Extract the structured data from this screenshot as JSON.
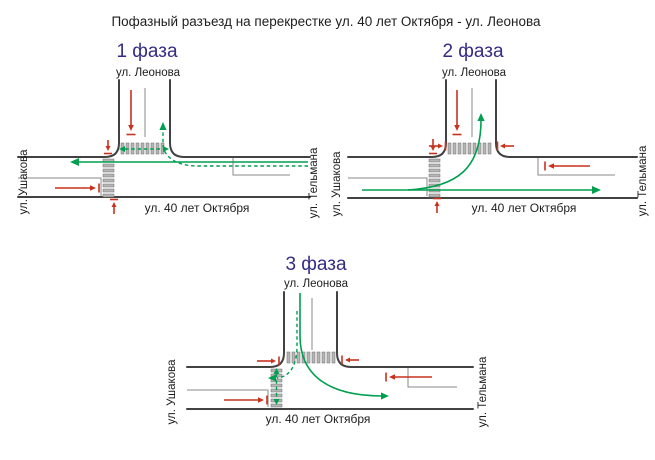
{
  "title": "Пофазный разъезд на перекрестке ул. 40 лет Октября - ул. Леонова",
  "colors": {
    "allowed_green": "#00a050",
    "prohibited_red": "#c8321e",
    "street_edge": "#424242",
    "median_gray": "#8a8a8a",
    "zebra_fill": "#b5b5b5",
    "zebra_stroke": "#6f6f6f",
    "phase_title": "#332c85",
    "text": "#1e1e1e"
  },
  "phases": [
    {
      "label": "1 фаза",
      "streets": {
        "top": "ул. Леонова",
        "left": "ул. Ушакова",
        "right": "ул. Тельмана",
        "bottom": "ул. 40 лет Октября"
      },
      "allowed": [
        {
          "movement": "oktyabrya-westbound-through",
          "style": "solid"
        },
        {
          "movement": "oktyabrya-westbound-right-turn-to-leonova",
          "style": "dashed"
        },
        {
          "movement": "pedestrian-crossing-leonova",
          "style": "dashed"
        }
      ],
      "prohibited": [
        {
          "movement": "leonova-southbound-approach"
        },
        {
          "movement": "oktyabrya-eastbound-approach"
        },
        {
          "movement": "pedestrian-crossing-oktyabrya-from-north"
        },
        {
          "movement": "pedestrian-crossing-oktyabrya-from-south"
        }
      ]
    },
    {
      "label": "2 фаза",
      "streets": {
        "top": "ул. Леонова",
        "left": "ул. Ушакова",
        "right": "ул. Тельмана",
        "bottom": "ул. 40 лет Октября"
      },
      "allowed": [
        {
          "movement": "oktyabrya-eastbound-through",
          "style": "solid"
        },
        {
          "movement": "oktyabrya-eastbound-left-turn-to-leonova",
          "style": "solid"
        }
      ],
      "prohibited": [
        {
          "movement": "leonova-southbound-approach"
        },
        {
          "movement": "oktyabrya-westbound-approach"
        },
        {
          "movement": "pedestrian-crossing-leonova-from-west"
        },
        {
          "movement": "pedestrian-crossing-leonova-from-east"
        },
        {
          "movement": "pedestrian-crossing-oktyabrya-from-north"
        },
        {
          "movement": "pedestrian-crossing-oktyabrya-from-south"
        }
      ]
    },
    {
      "label": "3 фаза",
      "streets": {
        "top": "ул. Леонова",
        "left": "ул. Ушакова",
        "right": "ул. Тельмана",
        "bottom": "ул. 40 лет Октября"
      },
      "allowed": [
        {
          "movement": "leonova-left-turn-to-oktyabrya-east",
          "style": "solid"
        },
        {
          "movement": "leonova-right-turn-to-oktyabrya-west",
          "style": "dashed"
        },
        {
          "movement": "pedestrian-crossing-oktyabrya",
          "style": "dashed"
        }
      ],
      "prohibited": [
        {
          "movement": "oktyabrya-eastbound-approach"
        },
        {
          "movement": "oktyabrya-westbound-approach"
        },
        {
          "movement": "pedestrian-crossing-leonova-from-west"
        },
        {
          "movement": "pedestrian-crossing-leonova-from-east"
        }
      ]
    }
  ]
}
